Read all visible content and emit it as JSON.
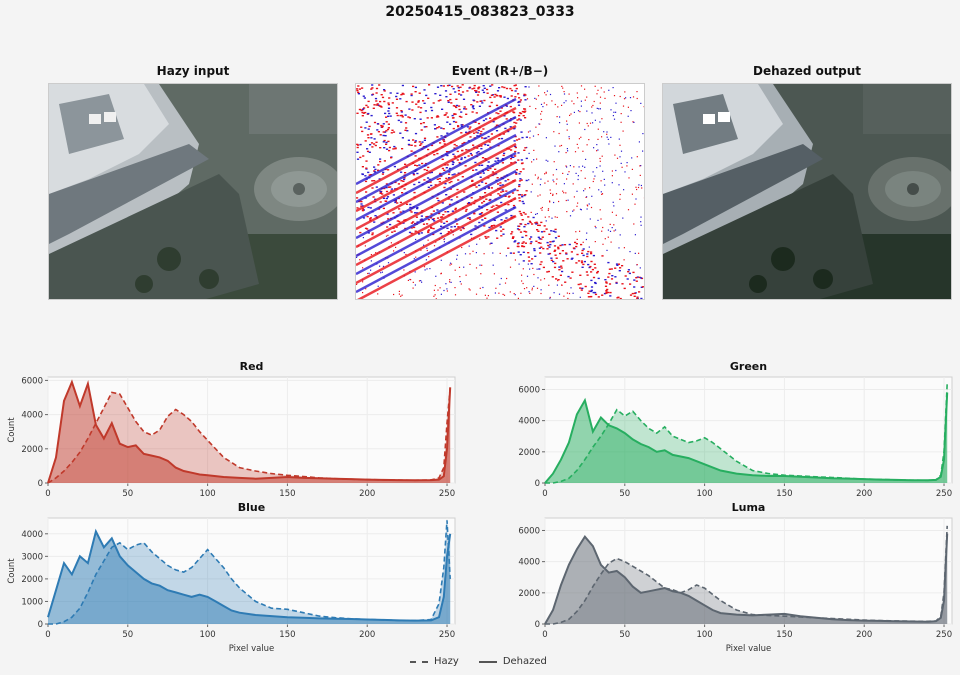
{
  "figure": {
    "title": "20250415_083823_0333",
    "images": [
      {
        "title": "Hazy input",
        "kind": "aerial-photo-hazy"
      },
      {
        "title": "Event (R+/B−)",
        "kind": "event-map",
        "colors": {
          "positive": "#e8121a",
          "negative": "#2a1ccf"
        }
      },
      {
        "title": "Dehazed output",
        "kind": "aerial-photo-dehazed"
      }
    ],
    "legend": {
      "hazy_label": "Hazy",
      "dehazed_label": "Dehazed"
    }
  },
  "chart_data": [
    {
      "type": "area",
      "title": "Red",
      "xlabel": "",
      "ylabel": "Count",
      "xlim": [
        0,
        255
      ],
      "ylim": [
        0,
        6200
      ],
      "xticks": [
        0,
        50,
        100,
        150,
        200,
        250
      ],
      "yticks": [
        0,
        2000,
        4000,
        6000
      ],
      "color": "#c0392b",
      "grid": true,
      "x": [
        0,
        5,
        10,
        15,
        20,
        25,
        30,
        35,
        40,
        45,
        50,
        55,
        60,
        65,
        70,
        75,
        80,
        85,
        90,
        95,
        100,
        110,
        120,
        130,
        140,
        150,
        160,
        170,
        180,
        190,
        200,
        210,
        220,
        230,
        240,
        245,
        248,
        250,
        252
      ],
      "series": [
        {
          "name": "Hazy",
          "values": [
            0,
            300,
            700,
            1200,
            1800,
            2600,
            3500,
            4400,
            5300,
            5200,
            4400,
            3600,
            3000,
            2800,
            3100,
            3900,
            4300,
            4000,
            3600,
            3000,
            2500,
            1500,
            900,
            700,
            550,
            450,
            380,
            300,
            250,
            220,
            200,
            180,
            170,
            160,
            180,
            300,
            900,
            3500,
            5600
          ]
        },
        {
          "name": "Dehazed",
          "values": [
            0,
            1500,
            4800,
            5900,
            4500,
            5800,
            3400,
            2600,
            3500,
            2300,
            2100,
            2200,
            1700,
            1600,
            1500,
            1300,
            900,
            700,
            600,
            500,
            450,
            350,
            300,
            250,
            300,
            350,
            300,
            280,
            250,
            230,
            200,
            180,
            170,
            160,
            170,
            200,
            400,
            2000,
            5600
          ]
        }
      ]
    },
    {
      "type": "area",
      "title": "Green",
      "xlabel": "",
      "ylabel": "",
      "xlim": [
        0,
        255
      ],
      "ylim": [
        0,
        6800
      ],
      "xticks": [
        0,
        50,
        100,
        150,
        200,
        250
      ],
      "yticks": [
        0,
        2000,
        4000,
        6000
      ],
      "color": "#27ae60",
      "grid": true,
      "x": [
        0,
        5,
        10,
        15,
        20,
        25,
        30,
        35,
        40,
        45,
        50,
        55,
        60,
        65,
        70,
        75,
        80,
        85,
        90,
        95,
        100,
        105,
        110,
        120,
        130,
        140,
        150,
        160,
        170,
        180,
        190,
        200,
        210,
        220,
        230,
        240,
        245,
        248,
        250,
        252
      ],
      "series": [
        {
          "name": "Hazy",
          "values": [
            0,
            0,
            100,
            300,
            800,
            1500,
            2300,
            3000,
            3800,
            4700,
            4300,
            4600,
            4000,
            3500,
            3200,
            3600,
            3000,
            2800,
            2600,
            2700,
            2900,
            2600,
            2200,
            1400,
            800,
            600,
            500,
            450,
            400,
            350,
            300,
            250,
            230,
            200,
            180,
            170,
            200,
            500,
            2000,
            6400
          ]
        },
        {
          "name": "Dehazed",
          "values": [
            0,
            600,
            1500,
            2600,
            4400,
            5300,
            3300,
            4200,
            3700,
            3500,
            3200,
            2800,
            2500,
            2300,
            2000,
            2100,
            1800,
            1700,
            1600,
            1400,
            1200,
            1000,
            800,
            600,
            500,
            450,
            450,
            400,
            350,
            300,
            280,
            250,
            220,
            200,
            180,
            170,
            200,
            400,
            1500,
            5800
          ]
        }
      ]
    },
    {
      "type": "area",
      "title": "Blue",
      "xlabel": "Pixel value",
      "ylabel": "Count",
      "xlim": [
        0,
        255
      ],
      "ylim": [
        0,
        4700
      ],
      "xticks": [
        0,
        50,
        100,
        150,
        200,
        250
      ],
      "yticks": [
        0,
        1000,
        2000,
        3000,
        4000
      ],
      "color": "#2e7bb4",
      "grid": true,
      "x": [
        0,
        5,
        10,
        15,
        20,
        25,
        30,
        35,
        40,
        45,
        50,
        55,
        60,
        65,
        70,
        75,
        80,
        85,
        90,
        95,
        100,
        105,
        110,
        115,
        120,
        130,
        140,
        150,
        160,
        170,
        180,
        190,
        200,
        210,
        220,
        230,
        240,
        245,
        248,
        250,
        252
      ],
      "series": [
        {
          "name": "Hazy",
          "values": [
            0,
            0,
            100,
            300,
            700,
            1400,
            2200,
            2800,
            3400,
            3600,
            3300,
            3500,
            3600,
            3200,
            2900,
            2600,
            2400,
            2300,
            2500,
            2900,
            3300,
            2900,
            2500,
            2000,
            1600,
            1000,
            700,
            650,
            500,
            350,
            280,
            230,
            200,
            180,
            160,
            150,
            200,
            900,
            2500,
            4600,
            2000
          ]
        },
        {
          "name": "Dehazed",
          "values": [
            300,
            1500,
            2700,
            2200,
            3000,
            2700,
            4100,
            3400,
            3800,
            3000,
            2600,
            2300,
            2000,
            1800,
            1700,
            1500,
            1400,
            1300,
            1200,
            1300,
            1200,
            1000,
            800,
            600,
            500,
            400,
            350,
            300,
            280,
            250,
            230,
            220,
            200,
            180,
            160,
            150,
            160,
            300,
            1200,
            3000,
            4000
          ]
        }
      ]
    },
    {
      "type": "area",
      "title": "Luma",
      "xlabel": "Pixel value",
      "ylabel": "",
      "xlim": [
        0,
        255
      ],
      "ylim": [
        0,
        6800
      ],
      "xticks": [
        0,
        50,
        100,
        150,
        200,
        250
      ],
      "yticks": [
        0,
        2000,
        4000,
        6000
      ],
      "color": "#5d6670",
      "grid": true,
      "x": [
        0,
        5,
        10,
        15,
        20,
        25,
        30,
        35,
        40,
        45,
        50,
        55,
        60,
        65,
        70,
        75,
        80,
        85,
        90,
        95,
        100,
        105,
        110,
        120,
        130,
        140,
        150,
        160,
        170,
        180,
        190,
        200,
        210,
        220,
        230,
        240,
        245,
        248,
        250,
        252
      ],
      "series": [
        {
          "name": "Hazy",
          "values": [
            0,
            0,
            100,
            300,
            800,
            1500,
            2400,
            3200,
            3900,
            4200,
            4000,
            3700,
            3400,
            3100,
            2700,
            2300,
            2200,
            2000,
            2200,
            2500,
            2300,
            1900,
            1500,
            900,
            600,
            550,
            500,
            450,
            400,
            350,
            300,
            250,
            220,
            200,
            180,
            170,
            200,
            500,
            2000,
            6300
          ]
        },
        {
          "name": "Dehazed",
          "values": [
            0,
            900,
            2500,
            3800,
            4800,
            5600,
            5000,
            3800,
            3300,
            3400,
            3000,
            2400,
            2000,
            2100,
            2200,
            2300,
            2100,
            2000,
            1800,
            1500,
            1200,
            900,
            700,
            600,
            550,
            600,
            650,
            500,
            400,
            300,
            250,
            220,
            200,
            180,
            160,
            150,
            180,
            400,
            1500,
            5800
          ]
        }
      ]
    }
  ]
}
